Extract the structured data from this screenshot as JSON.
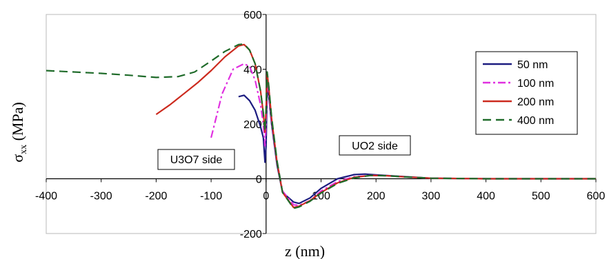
{
  "chart_data": {
    "type": "line",
    "title": "",
    "xlabel": "z (nm)",
    "ylabel_main": "σ",
    "ylabel_sub": "xx",
    "ylabel_unit": " (MPa)",
    "xlim": [
      -400,
      600
    ],
    "ylim": [
      -200,
      600
    ],
    "x_ticks": [
      -400,
      -300,
      -200,
      -100,
      0,
      100,
      200,
      300,
      400,
      500,
      600
    ],
    "y_ticks": [
      -200,
      0,
      200,
      400,
      600
    ],
    "grid": false,
    "legend_position": "right",
    "annotations": [
      {
        "text": "U3O7 side"
      },
      {
        "text": "UO2 side"
      }
    ],
    "series": [
      {
        "name": "50 nm",
        "color": "#1c1c80",
        "dash": "solid",
        "points": [
          [
            -50,
            300
          ],
          [
            -40,
            305
          ],
          [
            -30,
            285
          ],
          [
            -20,
            250
          ],
          [
            -10,
            190
          ],
          [
            -5,
            150
          ],
          [
            -2,
            60
          ],
          [
            0,
            120
          ],
          [
            2,
            340
          ],
          [
            5,
            300
          ],
          [
            10,
            200
          ],
          [
            20,
            50
          ],
          [
            30,
            -50
          ],
          [
            50,
            -85
          ],
          [
            60,
            -90
          ],
          [
            80,
            -70
          ],
          [
            100,
            -35
          ],
          [
            130,
            0
          ],
          [
            160,
            15
          ],
          [
            180,
            17
          ],
          [
            200,
            14
          ],
          [
            250,
            8
          ],
          [
            300,
            2
          ],
          [
            400,
            0
          ],
          [
            500,
            0
          ],
          [
            600,
            0
          ]
        ]
      },
      {
        "name": "100 nm",
        "color": "#e030e0",
        "dash": "dashdot",
        "points": [
          [
            -100,
            150
          ],
          [
            -80,
            310
          ],
          [
            -60,
            400
          ],
          [
            -40,
            420
          ],
          [
            -30,
            410
          ],
          [
            -20,
            360
          ],
          [
            -10,
            270
          ],
          [
            -5,
            200
          ],
          [
            -2,
            120
          ],
          [
            0,
            200
          ],
          [
            2,
            360
          ],
          [
            5,
            310
          ],
          [
            10,
            210
          ],
          [
            20,
            60
          ],
          [
            30,
            -45
          ],
          [
            50,
            -95
          ],
          [
            60,
            -97
          ],
          [
            80,
            -80
          ],
          [
            100,
            -45
          ],
          [
            130,
            -10
          ],
          [
            160,
            7
          ],
          [
            190,
            12
          ],
          [
            220,
            11
          ],
          [
            250,
            7
          ],
          [
            300,
            2
          ],
          [
            400,
            0
          ],
          [
            500,
            0
          ],
          [
            600,
            0
          ]
        ]
      },
      {
        "name": "200 nm",
        "color": "#cc2a1e",
        "dash": "solid",
        "points": [
          [
            -200,
            235
          ],
          [
            -175,
            270
          ],
          [
            -150,
            310
          ],
          [
            -125,
            350
          ],
          [
            -100,
            395
          ],
          [
            -75,
            445
          ],
          [
            -50,
            485
          ],
          [
            -40,
            490
          ],
          [
            -30,
            470
          ],
          [
            -20,
            420
          ],
          [
            -10,
            320
          ],
          [
            -5,
            240
          ],
          [
            -2,
            170
          ],
          [
            0,
            250
          ],
          [
            2,
            385
          ],
          [
            5,
            330
          ],
          [
            10,
            220
          ],
          [
            20,
            60
          ],
          [
            30,
            -50
          ],
          [
            50,
            -105
          ],
          [
            60,
            -100
          ],
          [
            80,
            -80
          ],
          [
            100,
            -50
          ],
          [
            130,
            -15
          ],
          [
            160,
            5
          ],
          [
            190,
            12
          ],
          [
            220,
            11
          ],
          [
            250,
            7
          ],
          [
            300,
            2
          ],
          [
            400,
            0
          ],
          [
            500,
            0
          ],
          [
            600,
            0
          ]
        ]
      },
      {
        "name": "400 nm",
        "color": "#1f6b2a",
        "dash": "dash",
        "points": [
          [
            -400,
            395
          ],
          [
            -300,
            385
          ],
          [
            -250,
            378
          ],
          [
            -200,
            370
          ],
          [
            -160,
            373
          ],
          [
            -130,
            390
          ],
          [
            -100,
            430
          ],
          [
            -75,
            465
          ],
          [
            -50,
            490
          ],
          [
            -40,
            492
          ],
          [
            -30,
            470
          ],
          [
            -20,
            420
          ],
          [
            -10,
            320
          ],
          [
            -5,
            240
          ],
          [
            -2,
            175
          ],
          [
            0,
            255
          ],
          [
            2,
            390
          ],
          [
            5,
            335
          ],
          [
            10,
            225
          ],
          [
            20,
            65
          ],
          [
            30,
            -50
          ],
          [
            50,
            -108
          ],
          [
            60,
            -103
          ],
          [
            80,
            -82
          ],
          [
            100,
            -52
          ],
          [
            130,
            -17
          ],
          [
            160,
            3
          ],
          [
            190,
            12
          ],
          [
            220,
            11
          ],
          [
            250,
            7
          ],
          [
            300,
            2
          ],
          [
            400,
            0
          ],
          [
            500,
            0
          ],
          [
            600,
            0
          ]
        ]
      }
    ]
  }
}
